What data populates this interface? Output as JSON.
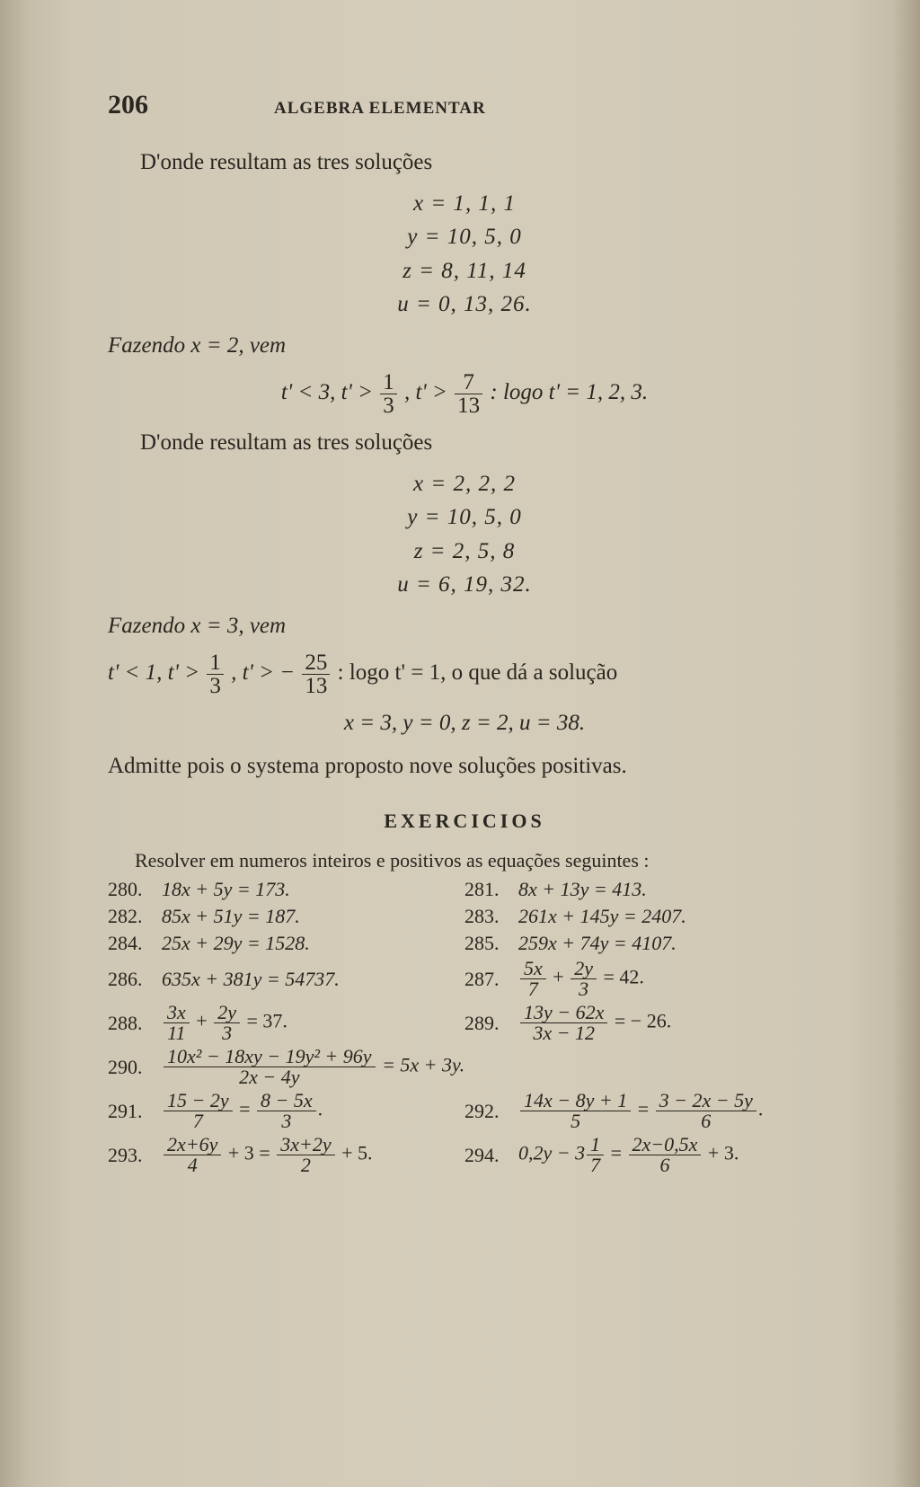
{
  "page_number": "206",
  "book_title": "ALGEBRA ELEMENTAR",
  "p1": "D'onde resultam as tres soluções",
  "sol1": {
    "l1": "x =   1,   1,   1",
    "l2": "y = 10,   5,   0",
    "l3": "z =   8, 11, 14",
    "l4": "u =   0, 13, 26."
  },
  "p2": "Fazendo x = 2, vem",
  "m1_pre": "t' < 3,  t' >",
  "m1_f1n": "1",
  "m1_f1d": "3",
  "m1_mid": ",  t' >",
  "m1_f2n": "7",
  "m1_f2d": "13",
  "m1_post": ":  logo t' = 1, 2, 3.",
  "p3": "D'onde resultam as tres soluções",
  "sol2": {
    "l1": "x =   2,   2,   2",
    "l2": "y = 10,   5,   0",
    "l3": "z =   2,   5,   8",
    "l4": "u =   6, 19, 32."
  },
  "p4": "Fazendo x = 3, vem",
  "m2_pre": "t' < 1,  t' >",
  "m2_f1n": "1",
  "m2_f1d": "3",
  "m2_mid": ",  t' > −",
  "m2_f2n": "25",
  "m2_f2d": "13",
  "m2_post": ":  logo t' = 1, o que dá a solução",
  "m3": "x = 3,  y = 0,  z = 2,  u = 38.",
  "p5": "Admitte pois o systema proposto nove soluções positivas.",
  "section": "EXERCICIOS",
  "ex_intro": "Resolver em numeros inteiros e positivos as equações seguintes :",
  "ex": {
    "n280": "280.",
    "e280": "18x +   5y = 173.",
    "n281": "281.",
    "e281": "8x +  13y =  413.",
    "n282": "282.",
    "e282": "85x + 51y = 187.",
    "n283": "283.",
    "e283": "261x + 145y = 2407.",
    "n284": "284.",
    "e284": "25x + 29y = 1528.",
    "n285": "285.",
    "e285": "259x +  74y = 4107.",
    "n286": "286.",
    "e286": "635x + 381y = 54737.",
    "n287": "287.",
    "e287_f1n": "5x",
    "e287_f1d": "7",
    "e287_plus": " + ",
    "e287_f2n": "2y",
    "e287_f2d": "3",
    "e287_post": " = 42.",
    "n288": "288.",
    "e288_f1n": "3x",
    "e288_f1d": "11",
    "e288_plus": " + ",
    "e288_f2n": "2y",
    "e288_f2d": "3",
    "e288_post": " = 37.",
    "n289": "289.",
    "e289_f1n": "13y − 62x",
    "e289_f1d": "3x − 12",
    "e289_post": " = − 26.",
    "n290": "290.",
    "e290_f1n": "10x² − 18xy − 19y² + 96y",
    "e290_f1d": "2x − 4y",
    "e290_post": " = 5x + 3y.",
    "n291": "291.",
    "e291_f1n": "15 − 2y",
    "e291_f1d": "7",
    "e291_eq": " = ",
    "e291_f2n": "8 − 5x",
    "e291_f2d": "3",
    "e291_post": ".",
    "n292": "292.",
    "e292_f1n": "14x − 8y + 1",
    "e292_f1d": "5",
    "e292_eq": " = ",
    "e292_f2n": "3 − 2x − 5y",
    "e292_f2d": "6",
    "e292_post": ".",
    "n293": "293.",
    "e293_f1n": "2x+6y",
    "e293_f1d": "4",
    "e293_mid1": " + 3 = ",
    "e293_f2n": "3x+2y",
    "e293_f2d": "2",
    "e293_post": " + 5.",
    "n294": "294.",
    "e294_pre": "0,2y − 3",
    "e294_f1n": "1",
    "e294_f1d": "7",
    "e294_eq": " = ",
    "e294_f2n": "2x−0,5x",
    "e294_f2d": "6",
    "e294_post": " + 3."
  }
}
